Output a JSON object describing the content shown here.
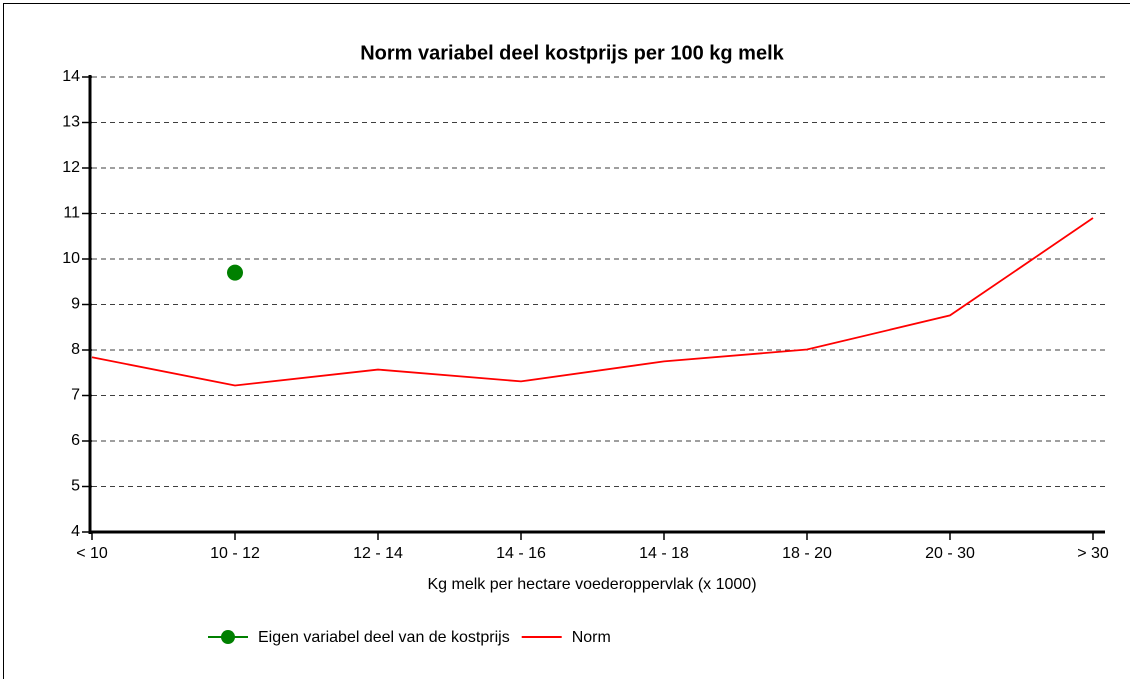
{
  "chart_data": {
    "type": "line",
    "title": "Norm variabel deel kostprijs per 100 kg melk",
    "x_label": "Kg melk per hectare voederoppervlak (x 1000)",
    "categories": [
      "< 10",
      "10 - 12",
      "12 - 14",
      "14 - 16",
      "14 - 18",
      "18 - 20",
      "20 - 30",
      "> 30"
    ],
    "series": [
      {
        "name": "Eigen variabel deel van de kostprijs",
        "color": "#008000",
        "marker": "circle",
        "values": [
          null,
          9.7,
          null,
          null,
          null,
          null,
          null,
          null
        ]
      },
      {
        "name": "Norm",
        "color": "#ff0000",
        "values": [
          7.84,
          7.22,
          7.57,
          7.31,
          7.75,
          8.01,
          8.76,
          10.9
        ]
      }
    ],
    "ylim": [
      4,
      14
    ],
    "yticks": [
      4,
      5,
      6,
      7,
      8,
      9,
      10,
      11,
      12,
      13,
      14
    ],
    "grid": true,
    "legend": "bottom"
  }
}
